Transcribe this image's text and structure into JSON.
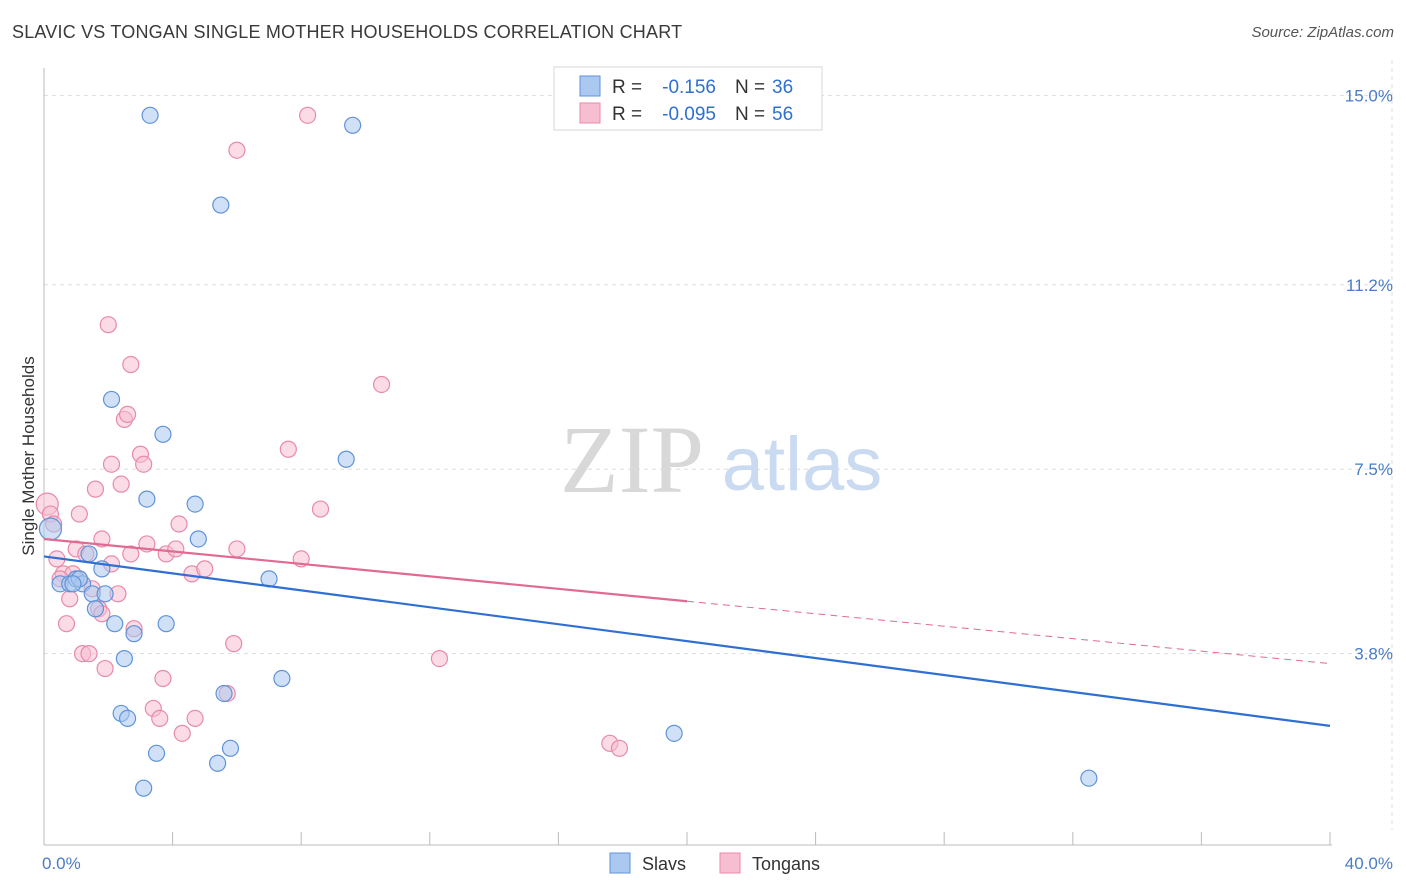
{
  "title": "SLAVIC VS TONGAN SINGLE MOTHER HOUSEHOLDS CORRELATION CHART",
  "source": "Source: ZipAtlas.com",
  "watermark": {
    "zip": "ZIP",
    "atlas": "atlas"
  },
  "colors": {
    "slavs_fill": "#aac8f0",
    "slavs_stroke": "#5f93d8",
    "slavs_line": "#2f6fd1",
    "tongans_fill": "#f7bdd0",
    "tongans_stroke": "#e88aab",
    "tongans_line": "#e06a93",
    "axis_label": "#4a7cc7",
    "grid": "#dddddd"
  },
  "legend": {
    "r_label": "R =",
    "n_label": "N =",
    "rows": [
      {
        "r": "-0.156",
        "n": "36"
      },
      {
        "r": "-0.095",
        "n": "56"
      }
    ]
  },
  "chart_data": {
    "type": "scatter",
    "title": "SLAVIC VS TONGAN SINGLE MOTHER HOUSEHOLDS CORRELATION CHART",
    "xlabel": "",
    "ylabel": "Single Mother Households",
    "xlim": [
      0,
      40
    ],
    "ylim": [
      0,
      15.5
    ],
    "x_tick_labels": [
      "0.0%",
      "40.0%"
    ],
    "y_ticks": [
      3.8,
      7.5,
      11.2,
      15.0
    ],
    "y_tick_labels": [
      "3.8%",
      "7.5%",
      "11.2%",
      "15.0%"
    ],
    "grid": true,
    "series": [
      {
        "name": "Slavs",
        "points": [
          [
            0.2,
            6.3
          ],
          [
            0.5,
            5.2
          ],
          [
            0.8,
            5.2
          ],
          [
            1.0,
            5.3
          ],
          [
            1.2,
            5.2
          ],
          [
            1.5,
            5.0
          ],
          [
            1.4,
            5.8
          ],
          [
            1.6,
            4.7
          ],
          [
            1.8,
            5.5
          ],
          [
            1.9,
            5.0
          ],
          [
            2.1,
            8.9
          ],
          [
            2.2,
            4.4
          ],
          [
            2.4,
            2.6
          ],
          [
            2.5,
            3.7
          ],
          [
            2.6,
            2.5
          ],
          [
            2.8,
            4.2
          ],
          [
            3.1,
            1.1
          ],
          [
            3.2,
            6.9
          ],
          [
            3.3,
            14.6
          ],
          [
            3.5,
            1.8
          ],
          [
            3.7,
            8.2
          ],
          [
            3.8,
            4.4
          ],
          [
            4.7,
            6.8
          ],
          [
            4.8,
            6.1
          ],
          [
            5.4,
            1.6
          ],
          [
            5.5,
            12.8
          ],
          [
            5.6,
            3.0
          ],
          [
            5.8,
            1.9
          ],
          [
            7.0,
            5.3
          ],
          [
            7.4,
            3.3
          ],
          [
            9.4,
            7.7
          ],
          [
            9.6,
            14.4
          ],
          [
            19.6,
            2.2
          ],
          [
            32.5,
            1.3
          ],
          [
            1.1,
            5.3
          ],
          [
            0.9,
            5.2
          ]
        ]
      },
      {
        "name": "Tongans",
        "points": [
          [
            0.1,
            6.8
          ],
          [
            0.2,
            6.6
          ],
          [
            0.3,
            6.4
          ],
          [
            0.4,
            5.7
          ],
          [
            0.6,
            5.4
          ],
          [
            0.7,
            4.4
          ],
          [
            0.8,
            4.9
          ],
          [
            0.9,
            5.4
          ],
          [
            1.0,
            5.9
          ],
          [
            1.1,
            5.3
          ],
          [
            1.1,
            6.6
          ],
          [
            1.2,
            3.8
          ],
          [
            1.3,
            5.8
          ],
          [
            1.4,
            3.8
          ],
          [
            1.5,
            5.1
          ],
          [
            1.6,
            7.1
          ],
          [
            1.7,
            4.7
          ],
          [
            1.8,
            6.1
          ],
          [
            1.8,
            4.6
          ],
          [
            1.9,
            3.5
          ],
          [
            2.0,
            10.4
          ],
          [
            2.1,
            5.6
          ],
          [
            2.1,
            7.6
          ],
          [
            2.3,
            5.0
          ],
          [
            2.4,
            7.2
          ],
          [
            2.5,
            8.5
          ],
          [
            2.6,
            8.6
          ],
          [
            2.7,
            5.8
          ],
          [
            2.7,
            9.6
          ],
          [
            2.8,
            4.3
          ],
          [
            3.0,
            7.8
          ],
          [
            3.1,
            7.6
          ],
          [
            3.2,
            6.0
          ],
          [
            3.4,
            2.7
          ],
          [
            3.6,
            2.5
          ],
          [
            3.7,
            3.3
          ],
          [
            3.8,
            5.8
          ],
          [
            4.1,
            5.9
          ],
          [
            4.3,
            2.2
          ],
          [
            4.2,
            6.4
          ],
          [
            4.6,
            5.4
          ],
          [
            4.7,
            2.5
          ],
          [
            5.0,
            5.5
          ],
          [
            5.7,
            3.0
          ],
          [
            5.9,
            4.0
          ],
          [
            6.0,
            5.9
          ],
          [
            6.0,
            13.9
          ],
          [
            7.6,
            7.9
          ],
          [
            8.0,
            5.7
          ],
          [
            8.2,
            14.6
          ],
          [
            8.6,
            6.7
          ],
          [
            10.5,
            9.2
          ],
          [
            12.3,
            3.7
          ],
          [
            17.6,
            2.0
          ],
          [
            17.9,
            1.9
          ],
          [
            0.5,
            5.3
          ]
        ]
      }
    ],
    "trend_lines": [
      {
        "name": "Slavs",
        "from": [
          0,
          5.75
        ],
        "to": [
          40,
          2.35
        ],
        "style": "solid"
      },
      {
        "name": "Tongans",
        "from": [
          0,
          6.1
        ],
        "to": [
          20,
          4.85
        ],
        "style": "solid"
      },
      {
        "name": "Tongans",
        "from": [
          20,
          4.85
        ],
        "to": [
          40,
          3.6
        ],
        "style": "dashed"
      }
    ]
  }
}
